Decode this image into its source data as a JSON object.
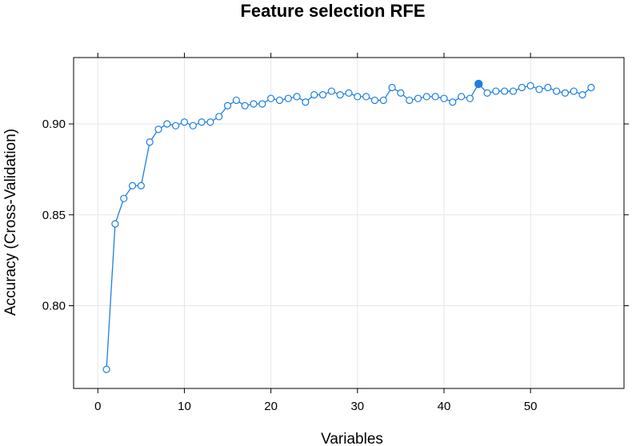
{
  "chart_data": {
    "type": "line",
    "title": "Feature selection RFE",
    "xlabel": "Variables",
    "ylabel": "Accuracy (Cross-Validation)",
    "xlim": [
      -2.8,
      60.8
    ],
    "ylim": [
      0.7545,
      0.9365
    ],
    "xticks": [
      0,
      10,
      20,
      30,
      40,
      50
    ],
    "yticks": [
      0.8,
      0.85,
      0.9
    ],
    "xtick_labels": [
      "0",
      "10",
      "20",
      "30",
      "40",
      "50"
    ],
    "ytick_labels": [
      "0.80",
      "0.85",
      "0.90"
    ],
    "grid": true,
    "line_color": "#1f7fe0",
    "selected_point_x": 44,
    "series": [
      {
        "x": [
          1,
          2,
          3,
          4,
          5,
          6,
          7,
          8,
          9,
          10,
          11,
          12,
          13,
          14,
          15,
          16,
          17,
          18,
          19,
          20,
          21,
          22,
          23,
          24,
          25,
          26,
          27,
          28,
          29,
          30,
          31,
          32,
          33,
          34,
          35,
          36,
          37,
          38,
          39,
          40,
          41,
          42,
          43,
          44,
          45,
          46,
          47,
          48,
          49,
          50,
          51,
          52,
          53,
          54,
          55,
          56,
          57
        ],
        "y": [
          0.765,
          0.845,
          0.859,
          0.866,
          0.866,
          0.89,
          0.897,
          0.9,
          0.899,
          0.901,
          0.899,
          0.901,
          0.901,
          0.904,
          0.91,
          0.913,
          0.91,
          0.911,
          0.911,
          0.914,
          0.913,
          0.914,
          0.915,
          0.912,
          0.916,
          0.916,
          0.918,
          0.916,
          0.917,
          0.915,
          0.915,
          0.913,
          0.913,
          0.92,
          0.917,
          0.913,
          0.914,
          0.915,
          0.915,
          0.914,
          0.912,
          0.915,
          0.914,
          0.922,
          0.917,
          0.918,
          0.918,
          0.918,
          0.92,
          0.921,
          0.919,
          0.92,
          0.918,
          0.917,
          0.918,
          0.916,
          0.92
        ]
      }
    ]
  }
}
